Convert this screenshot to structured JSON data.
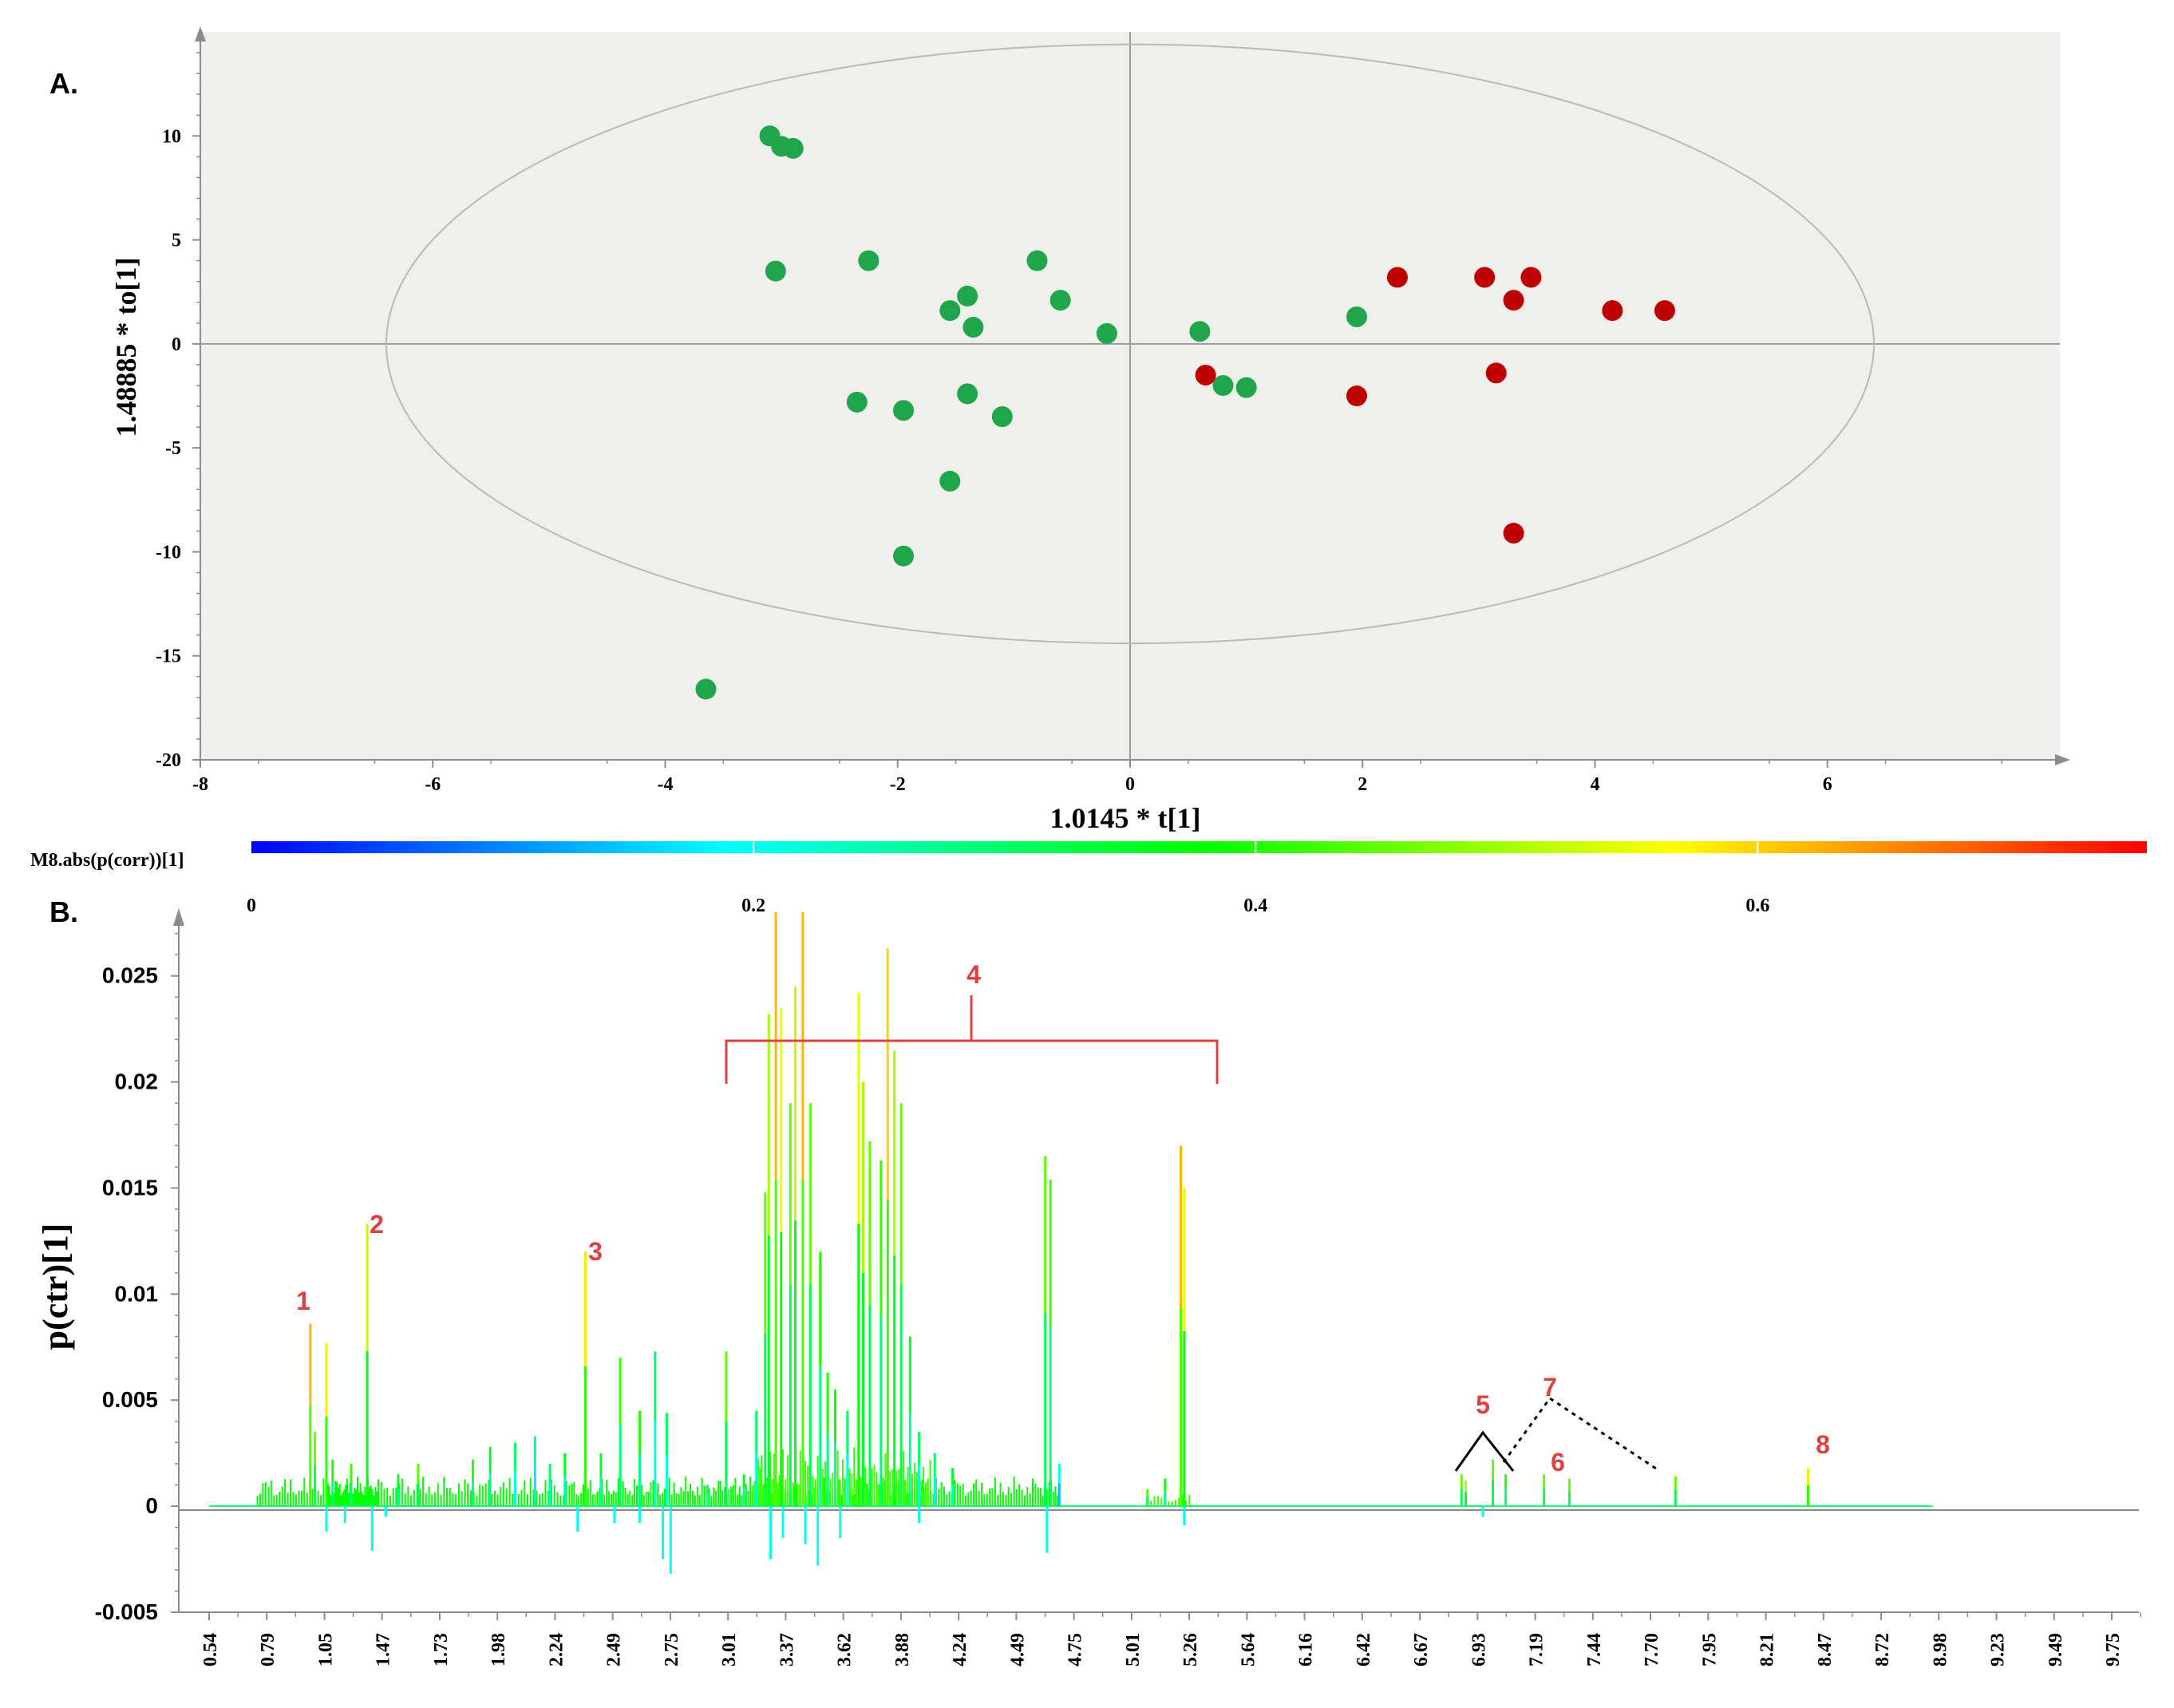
{
  "chart_data": [
    {
      "panel": "A.",
      "type": "scatter",
      "xlabel": "1.0145 * t[1]",
      "ylabel": "1.48885 * to[1]",
      "xlim": [
        -8,
        8
      ],
      "ylim": [
        -20,
        15
      ],
      "xticks": [
        -8,
        -6,
        -4,
        -2,
        0,
        2,
        4,
        6
      ],
      "yticks": [
        10,
        5,
        0,
        -5,
        -10,
        -15,
        -20
      ],
      "colors": {
        "group_green": "#1fa64a",
        "group_red": "#c00000",
        "plot_bg": "#efefec",
        "ellipse": "#b9b9b9"
      },
      "series": [
        {
          "name": "green",
          "points": [
            [
              -3.1,
              10
            ],
            [
              -3.0,
              9.5
            ],
            [
              -2.9,
              9.4
            ],
            [
              -3.05,
              3.5
            ],
            [
              -2.25,
              4.0
            ],
            [
              -0.8,
              4.0
            ],
            [
              -0.6,
              2.1
            ],
            [
              -1.4,
              2.3
            ],
            [
              -1.55,
              1.6
            ],
            [
              -1.35,
              0.8
            ],
            [
              -0.2,
              0.5
            ],
            [
              0.6,
              0.6
            ],
            [
              1.95,
              1.3
            ],
            [
              0.8,
              -2.0
            ],
            [
              1.0,
              -2.1
            ],
            [
              -2.35,
              -2.8
            ],
            [
              -1.95,
              -3.2
            ],
            [
              -1.4,
              -2.4
            ],
            [
              -1.1,
              -3.5
            ],
            [
              -1.55,
              -6.6
            ],
            [
              -1.95,
              -10.2
            ],
            [
              -3.65,
              -16.6
            ]
          ]
        },
        {
          "name": "red",
          "points": [
            [
              2.3,
              3.2
            ],
            [
              3.05,
              3.2
            ],
            [
              3.45,
              3.2
            ],
            [
              3.3,
              2.1
            ],
            [
              4.15,
              1.6
            ],
            [
              4.6,
              1.6
            ],
            [
              0.65,
              -1.5
            ],
            [
              3.15,
              -1.4
            ],
            [
              1.95,
              -2.5
            ],
            [
              3.3,
              -9.1
            ]
          ]
        }
      ],
      "ellipse": {
        "cx": 0,
        "cy": 0,
        "rx": 6.4,
        "ry": 14.4
      }
    },
    {
      "panel": "B.",
      "type": "line",
      "xlabel": "",
      "ylabel": "p(ctr)[1]",
      "ylim": [
        -0.005,
        0.028
      ],
      "yticks": [
        0.025,
        0.02,
        0.015,
        0.01,
        0.005,
        0,
        -0.005
      ],
      "ytick_labels": [
        "0.025",
        "0.02",
        "0.015",
        "0.01",
        "0.005",
        "0",
        "-0.005"
      ],
      "xtick_labels": [
        "0.54",
        "0.79",
        "1.05",
        "1.47",
        "1.73",
        "1.98",
        "2.24",
        "2.49",
        "2.75",
        "3.01",
        "3.37",
        "3.62",
        "3.88",
        "4.24",
        "4.49",
        "4.75",
        "5.01",
        "5.26",
        "5.64",
        "6.16",
        "6.42",
        "6.67",
        "6.93",
        "7.19",
        "7.44",
        "7.70",
        "7.95",
        "8.21",
        "8.47",
        "8.72",
        "8.98",
        "9.23",
        "9.49",
        "9.75"
      ],
      "colorbar": {
        "label": "M8.abs(p(corr))[1]",
        "ticks": [
          "0",
          "0.2",
          "0.4",
          "0.6"
        ],
        "colors": [
          "#0000ff",
          "#00ffff",
          "#00ff00",
          "#ffff00",
          "#ff0000"
        ]
      },
      "annotations": [
        "1",
        "2",
        "3",
        "4",
        "5",
        "6",
        "7",
        "8"
      ],
      "peaks": [
        {
          "x": 0.98,
          "y": 0.0086,
          "corr": 0.62
        },
        {
          "x": 1.0,
          "y": 0.0035,
          "corr": 0.45
        },
        {
          "x": 1.05,
          "y": 0.0077,
          "corr": 0.58
        },
        {
          "x": 1.1,
          "y": 0.0022,
          "corr": 0.4
        },
        {
          "x": 1.25,
          "y": 0.002,
          "corr": 0.42
        },
        {
          "x": 1.38,
          "y": 0.0133,
          "corr": 0.52
        },
        {
          "x": 1.55,
          "y": 0.0015,
          "corr": 0.35
        },
        {
          "x": 1.63,
          "y": 0.002,
          "corr": 0.45
        },
        {
          "x": 1.85,
          "y": 0.0022,
          "corr": 0.4
        },
        {
          "x": 1.92,
          "y": 0.0028,
          "corr": 0.35
        },
        {
          "x": 2.02,
          "y": 0.003,
          "corr": 0.3
        },
        {
          "x": 2.1,
          "y": 0.0033,
          "corr": 0.25
        },
        {
          "x": 2.16,
          "y": 0.002,
          "corr": 0.3
        },
        {
          "x": 2.22,
          "y": 0.0025,
          "corr": 0.35
        },
        {
          "x": 2.32,
          "y": 0.012,
          "corr": 0.58
        },
        {
          "x": 2.4,
          "y": 0.0025,
          "corr": 0.35
        },
        {
          "x": 2.5,
          "y": 0.007,
          "corr": 0.42
        },
        {
          "x": 2.6,
          "y": 0.0045,
          "corr": 0.4
        },
        {
          "x": 2.68,
          "y": 0.0073,
          "corr": 0.3
        },
        {
          "x": 2.74,
          "y": 0.0044,
          "corr": 0.3
        },
        {
          "x": 2.95,
          "y": 0.001,
          "corr": 0.3
        },
        {
          "x": 3.05,
          "y": 0.0073,
          "corr": 0.45
        },
        {
          "x": 3.15,
          "y": 0.0015,
          "corr": 0.35
        },
        {
          "x": 3.22,
          "y": 0.0045,
          "corr": 0.3
        },
        {
          "x": 3.27,
          "y": 0.0148,
          "corr": 0.45
        },
        {
          "x": 3.29,
          "y": 0.0232,
          "corr": 0.5
        },
        {
          "x": 3.33,
          "y": 0.028,
          "corr": 0.62
        },
        {
          "x": 3.36,
          "y": 0.0235,
          "corr": 0.55
        },
        {
          "x": 3.4,
          "y": 0.019,
          "corr": 0.45
        },
        {
          "x": 3.42,
          "y": 0.0245,
          "corr": 0.52
        },
        {
          "x": 3.45,
          "y": 0.028,
          "corr": 0.62
        },
        {
          "x": 3.48,
          "y": 0.019,
          "corr": 0.45
        },
        {
          "x": 3.52,
          "y": 0.012,
          "corr": 0.4
        },
        {
          "x": 3.55,
          "y": 0.0063,
          "corr": 0.4
        },
        {
          "x": 3.58,
          "y": 0.0055,
          "corr": 0.38
        },
        {
          "x": 3.63,
          "y": 0.0045,
          "corr": 0.3
        },
        {
          "x": 3.68,
          "y": 0.0242,
          "corr": 0.55
        },
        {
          "x": 3.7,
          "y": 0.02,
          "corr": 0.5
        },
        {
          "x": 3.73,
          "y": 0.0172,
          "corr": 0.45
        },
        {
          "x": 3.78,
          "y": 0.0163,
          "corr": 0.42
        },
        {
          "x": 3.81,
          "y": 0.0263,
          "corr": 0.6
        },
        {
          "x": 3.84,
          "y": 0.0215,
          "corr": 0.5
        },
        {
          "x": 3.87,
          "y": 0.019,
          "corr": 0.45
        },
        {
          "x": 3.91,
          "y": 0.008,
          "corr": 0.35
        },
        {
          "x": 3.95,
          "y": 0.0035,
          "corr": 0.3
        },
        {
          "x": 4.02,
          "y": 0.0025,
          "corr": 0.3
        },
        {
          "x": 4.1,
          "y": 0.0018,
          "corr": 0.35
        },
        {
          "x": 4.52,
          "y": 0.0165,
          "corr": 0.45
        },
        {
          "x": 4.55,
          "y": 0.0154,
          "corr": 0.42
        },
        {
          "x": 4.6,
          "y": 0.002,
          "corr": 0.2
        },
        {
          "x": 5.1,
          "y": 0.0008,
          "corr": 0.45
        },
        {
          "x": 5.2,
          "y": 0.0013,
          "corr": 0.4
        },
        {
          "x": 5.29,
          "y": 0.017,
          "corr": 0.62
        },
        {
          "x": 5.31,
          "y": 0.015,
          "corr": 0.55
        },
        {
          "x": 6.85,
          "y": 0.0015,
          "corr": 0.45
        },
        {
          "x": 6.88,
          "y": 0.0012,
          "corr": 0.5
        },
        {
          "x": 7.07,
          "y": 0.0022,
          "corr": 0.45
        },
        {
          "x": 7.16,
          "y": 0.0015,
          "corr": 0.4
        },
        {
          "x": 7.31,
          "y": 0.0015,
          "corr": 0.45
        },
        {
          "x": 7.4,
          "y": 0.0013,
          "corr": 0.45
        },
        {
          "x": 7.8,
          "y": 0.0014,
          "corr": 0.45
        },
        {
          "x": 8.43,
          "y": 0.0018,
          "corr": 0.58
        }
      ],
      "negatives": [
        {
          "x": 1.05,
          "y": -0.0012
        },
        {
          "x": 1.2,
          "y": -0.0008
        },
        {
          "x": 1.42,
          "y": -0.0021
        },
        {
          "x": 1.5,
          "y": -0.0005
        },
        {
          "x": 2.28,
          "y": -0.0012
        },
        {
          "x": 2.47,
          "y": -0.0008
        },
        {
          "x": 2.6,
          "y": -0.0008
        },
        {
          "x": 2.72,
          "y": -0.0025
        },
        {
          "x": 2.76,
          "y": -0.0032
        },
        {
          "x": 3.3,
          "y": -0.0025
        },
        {
          "x": 3.37,
          "y": -0.0015
        },
        {
          "x": 3.46,
          "y": -0.0018
        },
        {
          "x": 3.51,
          "y": -0.0028
        },
        {
          "x": 3.6,
          "y": -0.0015
        },
        {
          "x": 3.95,
          "y": -0.0008
        },
        {
          "x": 4.53,
          "y": -0.0022
        },
        {
          "x": 5.31,
          "y": -0.0009
        },
        {
          "x": 7.0,
          "y": -0.0005
        }
      ]
    }
  ]
}
